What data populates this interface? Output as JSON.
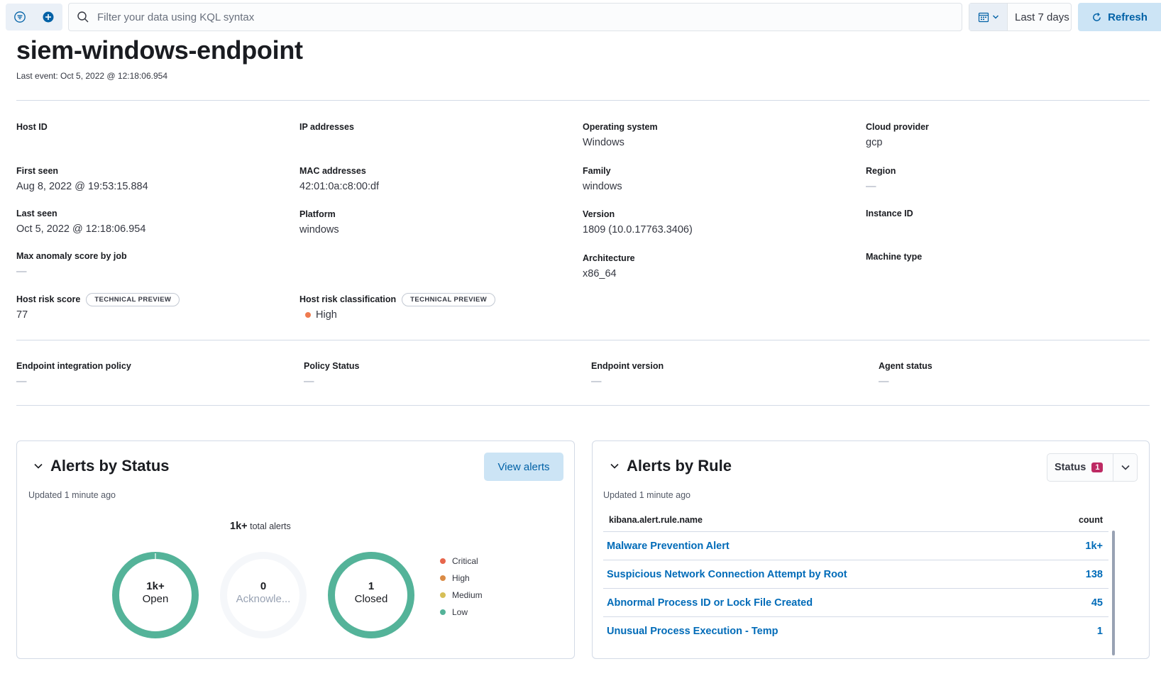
{
  "query_bar": {
    "search_placeholder": "Filter your data using KQL syntax",
    "date_range": "Last 7 days",
    "refresh_label": "Refresh"
  },
  "header": {
    "title": "siem-windows-endpoint",
    "last_event": "Last event: Oct 5, 2022 @ 12:18:06.954"
  },
  "overview": {
    "host_id": {
      "label": "Host ID",
      "value": ""
    },
    "first_seen": {
      "label": "First seen",
      "value": "Aug 8, 2022 @ 19:53:15.884"
    },
    "last_seen": {
      "label": "Last seen",
      "value": "Oct 5, 2022 @ 12:18:06.954"
    },
    "max_anomaly": {
      "label": "Max anomaly score by job",
      "value": "—"
    },
    "host_risk_score": {
      "label": "Host risk score",
      "badge": "TECHNICAL PREVIEW",
      "value": "77"
    },
    "ip_addresses": {
      "label": "IP addresses",
      "value": ""
    },
    "mac_addresses": {
      "label": "MAC addresses",
      "value": "42:01:0a:c8:00:df"
    },
    "platform": {
      "label": "Platform",
      "value": "windows"
    },
    "host_risk_classification": {
      "label": "Host risk classification",
      "badge": "TECHNICAL PREVIEW",
      "value": "High"
    },
    "operating_system": {
      "label": "Operating system",
      "value": "Windows"
    },
    "family": {
      "label": "Family",
      "value": "windows"
    },
    "version": {
      "label": "Version",
      "value": "1809 (10.0.17763.3406)"
    },
    "architecture": {
      "label": "Architecture",
      "value": "x86_64"
    },
    "cloud_provider": {
      "label": "Cloud provider",
      "value": "gcp"
    },
    "region": {
      "label": "Region",
      "value": "—"
    },
    "instance_id": {
      "label": "Instance ID",
      "value": ""
    },
    "machine_type": {
      "label": "Machine type",
      "value": ""
    }
  },
  "endpoint": {
    "integration_policy": {
      "label": "Endpoint integration policy",
      "value": "—"
    },
    "policy_status": {
      "label": "Policy Status",
      "value": "—"
    },
    "endpoint_version": {
      "label": "Endpoint version",
      "value": "—"
    },
    "agent_status": {
      "label": "Agent status",
      "value": "—"
    }
  },
  "alerts_by_status": {
    "title": "Alerts by Status",
    "updated": "Updated 1 minute ago",
    "view_alerts_label": "View alerts",
    "total_count": "1k+",
    "total_suffix": "total alerts",
    "donuts": [
      {
        "count": "1k+",
        "label": "Open"
      },
      {
        "count": "0",
        "label": "Acknowle..."
      },
      {
        "count": "1",
        "label": "Closed"
      }
    ],
    "legend": [
      {
        "label": "Critical",
        "color": "#e7664c"
      },
      {
        "label": "High",
        "color": "#da8b45"
      },
      {
        "label": "Medium",
        "color": "#d6bf57"
      },
      {
        "label": "Low",
        "color": "#54b399"
      }
    ]
  },
  "alerts_by_rule": {
    "title": "Alerts by Rule",
    "updated": "Updated 1 minute ago",
    "status_filter_label": "Status",
    "status_filter_count": "1",
    "columns": {
      "name": "kibana.alert.rule.name",
      "count": "count"
    },
    "rows": [
      {
        "name": "Malware Prevention Alert",
        "count": "1k+"
      },
      {
        "name": "Suspicious Network Connection Attempt by Root",
        "count": "138"
      },
      {
        "name": "Abnormal Process ID or Lock File Created",
        "count": "45"
      },
      {
        "name": "Unusual Process Execution - Temp",
        "count": "1"
      }
    ]
  }
}
